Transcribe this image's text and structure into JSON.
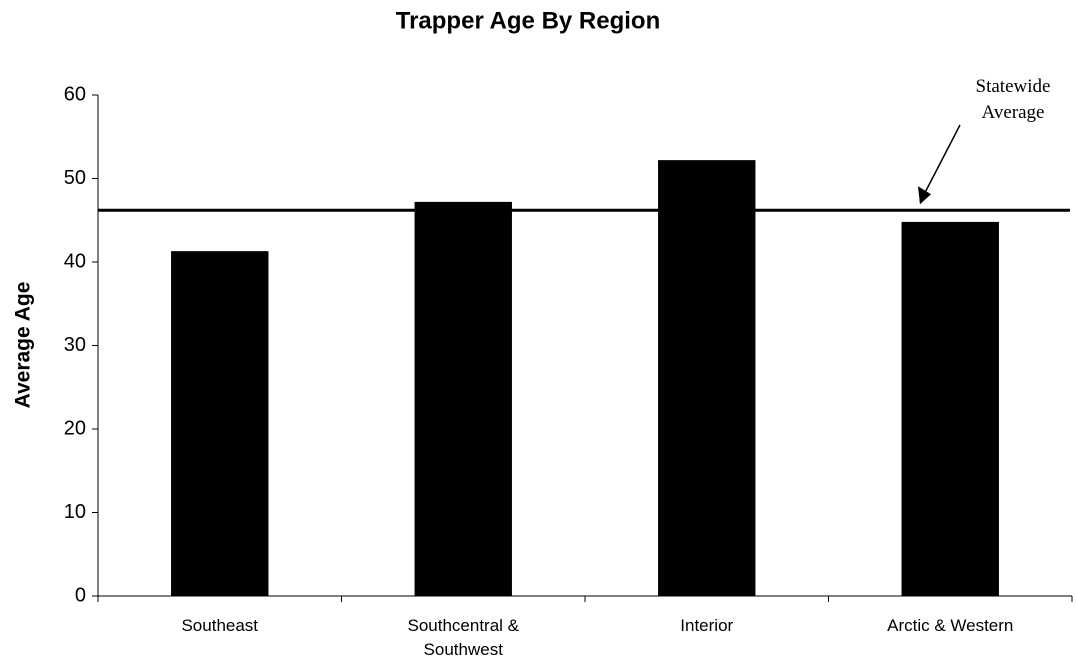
{
  "chart_data": {
    "type": "bar",
    "title": "Trapper Age By Region",
    "y_label": "Average Age",
    "categories": [
      "Southeast",
      "Southcentral & Southwest",
      "Interior",
      "Arctic & Western"
    ],
    "values": [
      41.3,
      47.2,
      52.2,
      44.8
    ],
    "color": "#000000",
    "ylim": [
      0,
      60
    ],
    "yticks": [
      0,
      10,
      20,
      30,
      40,
      50,
      60
    ],
    "grid": false,
    "reference_line": {
      "value": 46.2,
      "label": "Statewide Average"
    }
  }
}
